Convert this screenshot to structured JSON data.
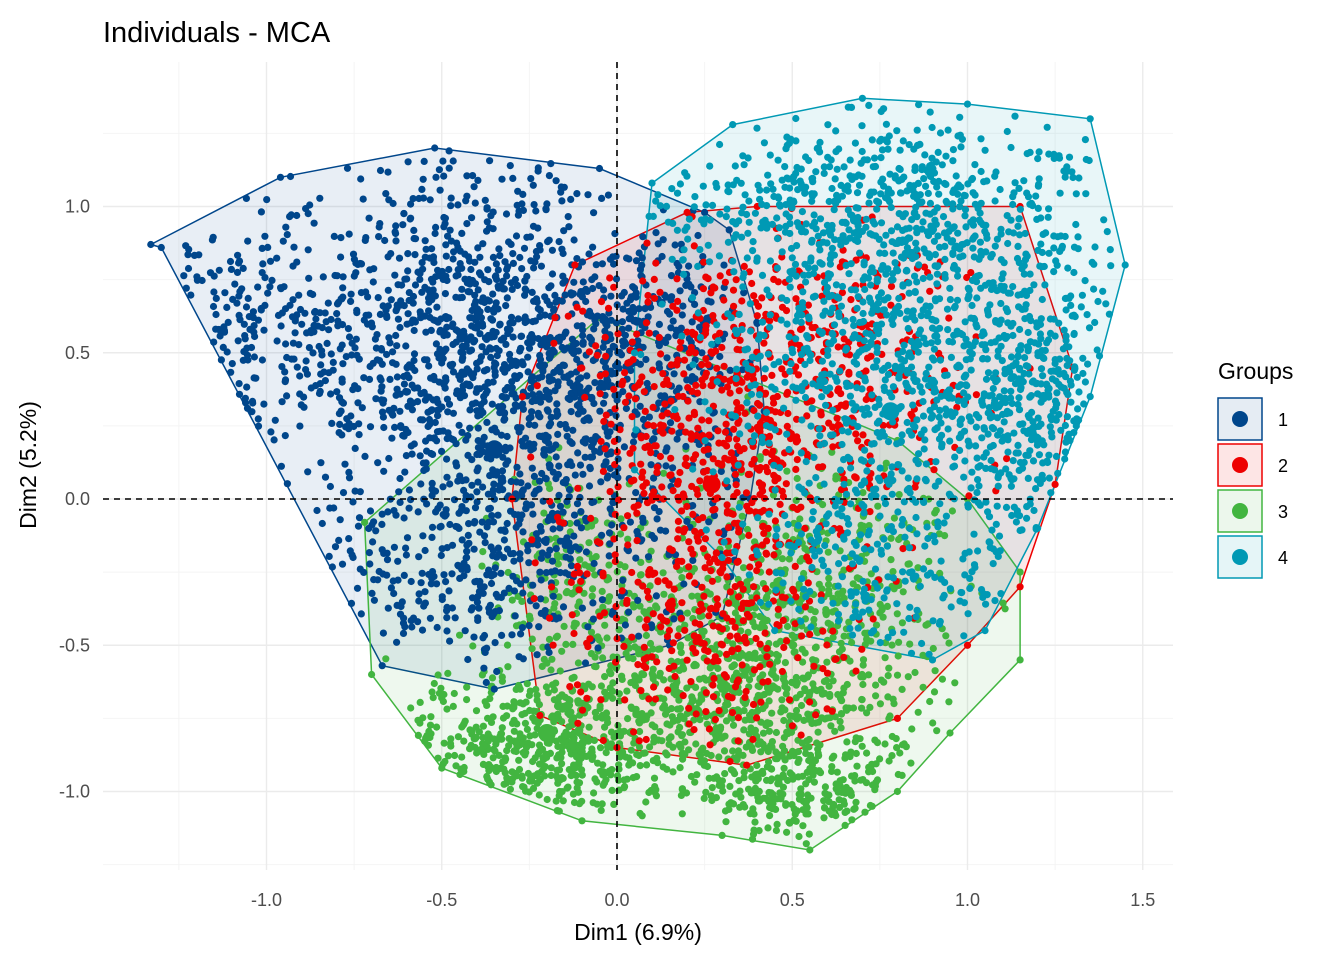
{
  "chart_data": {
    "type": "scatter",
    "title": "Individuals - MCA",
    "xlabel": "Dim1 (6.9%)",
    "ylabel": "Dim2 (5.2%)",
    "xlim": [
      -1.47,
      1.6
    ],
    "ylim": [
      -1.25,
      1.5
    ],
    "x_ticks": [
      -1.0,
      -0.5,
      0.0,
      0.5,
      1.0,
      1.5
    ],
    "x_tick_labels": [
      "-1.0",
      "-0.5",
      "0.0",
      "0.5",
      "1.0",
      "1.5"
    ],
    "y_ticks": [
      -1.0,
      -0.5,
      0.0,
      0.5,
      1.0
    ],
    "y_tick_labels": [
      "-1.0",
      "-0.5",
      "0.0",
      "0.5",
      "1.0"
    ],
    "grid": true,
    "reference_lines": {
      "x": 0,
      "y": 0,
      "style": "dashed"
    },
    "legend": {
      "title": "Groups",
      "position": "right"
    },
    "groups": [
      {
        "name": "1",
        "color": "#00468B",
        "centroid": [
          -0.35,
          0.17
        ],
        "hull": [
          [
            -1.33,
            0.87
          ],
          [
            -0.96,
            1.1
          ],
          [
            -0.52,
            1.2
          ],
          [
            -0.05,
            1.13
          ],
          [
            0.25,
            0.98
          ],
          [
            0.32,
            0.92
          ],
          [
            0.4,
            0.6
          ],
          [
            0.42,
            0.3
          ],
          [
            0.38,
            0.0
          ],
          [
            0.3,
            -0.4
          ],
          [
            0.15,
            -0.5
          ],
          [
            -0.35,
            -0.65
          ],
          [
            -0.67,
            -0.57
          ],
          [
            -1.3,
            0.86
          ]
        ],
        "blobs": [
          {
            "cx": -0.45,
            "cy": 0.55,
            "sx": 0.28,
            "sy": 0.3,
            "n": 900
          },
          {
            "cx": -0.15,
            "cy": 0.2,
            "sx": 0.25,
            "sy": 0.35,
            "n": 700
          },
          {
            "cx": -1.05,
            "cy": 0.55,
            "sx": 0.15,
            "sy": 0.2,
            "n": 160
          },
          {
            "cx": -0.45,
            "cy": -0.25,
            "sx": 0.2,
            "sy": 0.15,
            "n": 220
          },
          {
            "cx": 0.1,
            "cy": 0.6,
            "sx": 0.15,
            "sy": 0.15,
            "n": 180
          }
        ]
      },
      {
        "name": "2",
        "color": "#ED0000",
        "centroid": [
          0.27,
          0.05
        ],
        "hull": [
          [
            -0.27,
            0.35
          ],
          [
            -0.12,
            0.8
          ],
          [
            0.2,
            0.98
          ],
          [
            0.4,
            1.0
          ],
          [
            1.15,
            1.0
          ],
          [
            1.3,
            0.45
          ],
          [
            1.25,
            0.05
          ],
          [
            1.15,
            -0.3
          ],
          [
            1.0,
            -0.5
          ],
          [
            0.8,
            -0.75
          ],
          [
            0.37,
            -0.91
          ],
          [
            0.0,
            -0.85
          ],
          [
            -0.22,
            -0.74
          ],
          [
            -0.3,
            0.0
          ]
        ],
        "blobs": [
          {
            "cx": 0.3,
            "cy": 0.3,
            "sx": 0.2,
            "sy": 0.3,
            "n": 500
          },
          {
            "cx": 0.25,
            "cy": -0.35,
            "sx": 0.2,
            "sy": 0.25,
            "n": 350
          },
          {
            "cx": 0.65,
            "cy": 0.45,
            "sx": 0.2,
            "sy": 0.25,
            "n": 250
          }
        ]
      },
      {
        "name": "3",
        "color": "#42B540",
        "centroid": [
          -0.2,
          -0.8
        ],
        "hull": [
          [
            -0.72,
            -0.08
          ],
          [
            -0.05,
            0.62
          ],
          [
            0.8,
            0.2
          ],
          [
            1.0,
            0.0
          ],
          [
            1.15,
            -0.25
          ],
          [
            1.15,
            -0.55
          ],
          [
            0.95,
            -0.8
          ],
          [
            0.8,
            -1.0
          ],
          [
            0.55,
            -1.2
          ],
          [
            0.3,
            -1.15
          ],
          [
            -0.1,
            -1.1
          ],
          [
            -0.5,
            -0.92
          ],
          [
            -0.7,
            -0.6
          ]
        ],
        "blobs": [
          {
            "cx": 0.35,
            "cy": -0.65,
            "sx": 0.25,
            "sy": 0.22,
            "n": 900
          },
          {
            "cx": -0.25,
            "cy": -0.85,
            "sx": 0.22,
            "sy": 0.12,
            "n": 450
          },
          {
            "cx": 0.55,
            "cy": -1.0,
            "sx": 0.15,
            "sy": 0.1,
            "n": 200
          },
          {
            "cx": 0.6,
            "cy": -0.2,
            "sx": 0.2,
            "sy": 0.2,
            "n": 250
          },
          {
            "cx": -0.1,
            "cy": -0.3,
            "sx": 0.15,
            "sy": 0.2,
            "n": 200
          }
        ]
      },
      {
        "name": "4",
        "color": "#0099B4",
        "centroid": [
          0.78,
          0.3
        ],
        "hull": [
          [
            0.1,
            1.08
          ],
          [
            0.33,
            1.28
          ],
          [
            0.7,
            1.37
          ],
          [
            1.0,
            1.35
          ],
          [
            1.35,
            1.3
          ],
          [
            1.45,
            0.8
          ],
          [
            1.35,
            0.35
          ],
          [
            1.2,
            -0.1
          ],
          [
            1.05,
            -0.45
          ],
          [
            0.9,
            -0.55
          ],
          [
            0.45,
            -0.45
          ],
          [
            0.3,
            -0.2
          ],
          [
            0.05,
            0.1
          ],
          [
            0.05,
            0.5
          ]
        ],
        "blobs": [
          {
            "cx": 0.85,
            "cy": 0.55,
            "sx": 0.3,
            "sy": 0.35,
            "n": 1100
          },
          {
            "cx": 0.7,
            "cy": 1.05,
            "sx": 0.3,
            "sy": 0.15,
            "n": 350
          },
          {
            "cx": 1.2,
            "cy": 0.3,
            "sx": 0.12,
            "sy": 0.3,
            "n": 250
          },
          {
            "cx": 0.75,
            "cy": -0.25,
            "sx": 0.2,
            "sy": 0.2,
            "n": 200
          }
        ]
      }
    ]
  }
}
